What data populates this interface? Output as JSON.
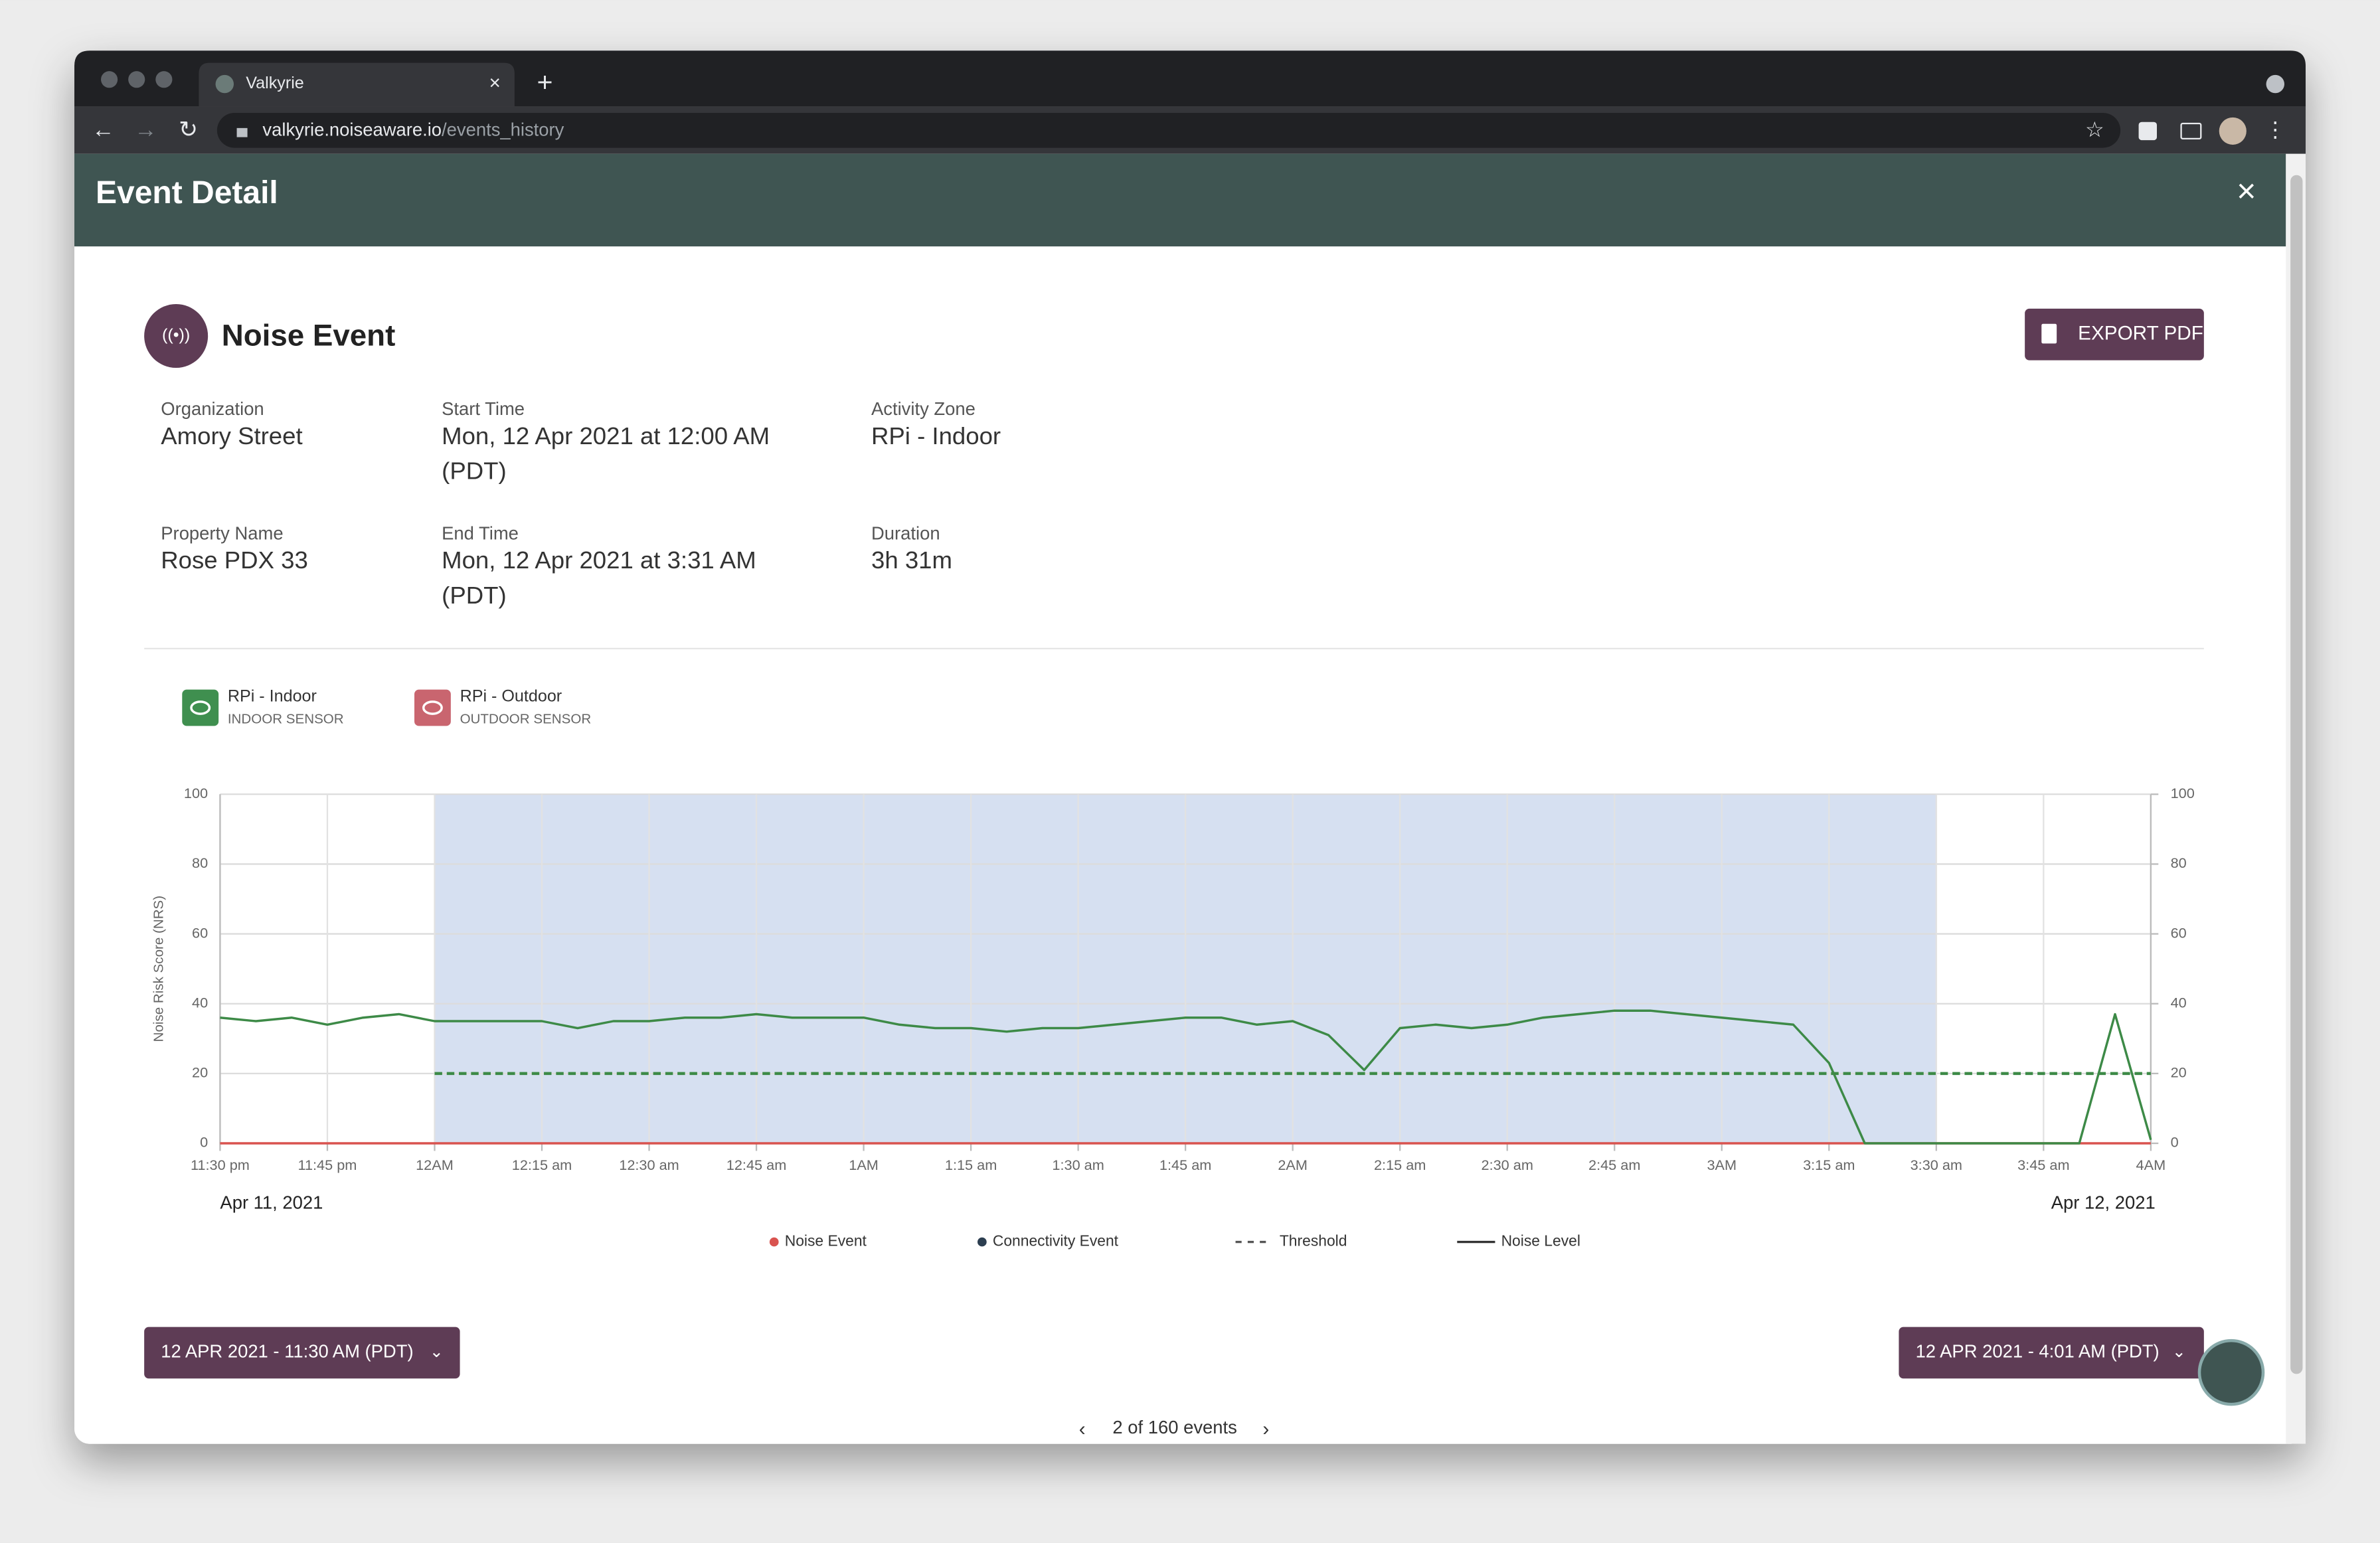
{
  "browser": {
    "tab_title": "Valkyrie",
    "url_host": "valkyrie.noiseaware.io",
    "url_path": "/events_history"
  },
  "modal": {
    "title": "Event Detail"
  },
  "event": {
    "title": "Noise Event",
    "export_button": "EXPORT PDF",
    "fields": [
      {
        "label": "Organization",
        "value": [
          "Amory Street"
        ]
      },
      {
        "label": "Start Time",
        "value": [
          "Mon, 12 Apr 2021 at 12:00 AM",
          "(PDT)"
        ]
      },
      {
        "label": "Activity Zone",
        "value": [
          "RPi - Indoor"
        ]
      },
      {
        "label": "Property Name",
        "value": [
          "Rose PDX 33"
        ]
      },
      {
        "label": "End Time",
        "value": [
          "Mon, 12 Apr 2021 at 3:31 AM",
          "(PDT)"
        ]
      },
      {
        "label": "Duration",
        "value": [
          "3h 31m"
        ]
      }
    ],
    "sensors": [
      {
        "name": "RPi - Indoor",
        "kind": "INDOOR SENSOR",
        "color": "#3f8f4f"
      },
      {
        "name": "RPi - Outdoor",
        "kind": "OUTDOOR SENSOR",
        "color": "#c9656f"
      }
    ]
  },
  "chart_data": {
    "type": "line",
    "y_label": "Noise Risk Score (NRS)",
    "x": [
      "23:30",
      "23:35",
      "23:40",
      "23:45",
      "23:50",
      "23:55",
      "00:00",
      "00:05",
      "00:10",
      "00:15",
      "00:20",
      "00:25",
      "00:30",
      "00:35",
      "00:40",
      "00:45",
      "00:50",
      "00:55",
      "01:00",
      "01:05",
      "01:10",
      "01:15",
      "01:20",
      "01:25",
      "01:30",
      "01:35",
      "01:40",
      "01:45",
      "01:50",
      "01:55",
      "02:00",
      "02:05",
      "02:10",
      "02:15",
      "02:20",
      "02:25",
      "02:30",
      "02:35",
      "02:40",
      "02:45",
      "02:50",
      "02:55",
      "03:00",
      "03:05",
      "03:10",
      "03:15",
      "03:20",
      "03:25",
      "03:30",
      "03:35",
      "03:40",
      "03:45",
      "03:50",
      "03:55",
      "04:00"
    ],
    "series": [
      {
        "name": "Noise Event",
        "color": "#d9534f",
        "legend_marker": "dot",
        "values": [
          0,
          0,
          0,
          0,
          0,
          0,
          0,
          0,
          0,
          0,
          0,
          0,
          0,
          0,
          0,
          0,
          0,
          0,
          0,
          0,
          0,
          0,
          0,
          0,
          0,
          0,
          0,
          0,
          0,
          0,
          0,
          0,
          0,
          0,
          0,
          0,
          0,
          0,
          0,
          0,
          0,
          0,
          0,
          0,
          0,
          0,
          0,
          0,
          0,
          0,
          0,
          0,
          0,
          0,
          0
        ]
      },
      {
        "name": "Connectivity Event",
        "color": "#2c3e50",
        "legend_marker": "dot",
        "values": [
          null,
          null,
          null,
          null,
          null,
          null,
          null,
          null,
          null,
          null,
          null,
          null,
          null,
          null,
          null,
          null,
          null,
          null,
          null,
          null,
          null,
          null,
          null,
          null,
          null,
          null,
          null,
          null,
          null,
          null,
          null,
          null,
          null,
          null,
          null,
          null,
          null,
          null,
          null,
          null,
          null,
          null,
          null,
          null,
          null,
          null,
          null,
          null,
          null,
          null,
          null,
          null,
          null,
          null,
          null
        ]
      },
      {
        "name": "Threshold",
        "color": "#3d8a47",
        "legend_marker": "dash",
        "dashed": true,
        "values": [
          null,
          null,
          null,
          null,
          null,
          null,
          20,
          20,
          20,
          20,
          20,
          20,
          20,
          20,
          20,
          20,
          20,
          20,
          20,
          20,
          20,
          20,
          20,
          20,
          20,
          20,
          20,
          20,
          20,
          20,
          20,
          20,
          20,
          20,
          20,
          20,
          20,
          20,
          20,
          20,
          20,
          20,
          20,
          20,
          20,
          20,
          20,
          20,
          20,
          20,
          20,
          20,
          20,
          20,
          20
        ]
      },
      {
        "name": "Noise Level",
        "color": "#3d8a47",
        "legend_marker": "line",
        "values": [
          36,
          35,
          36,
          34,
          36,
          37,
          35,
          35,
          35,
          35,
          33,
          35,
          35,
          36,
          36,
          37,
          36,
          36,
          36,
          34,
          33,
          33,
          32,
          33,
          33,
          34,
          35,
          36,
          36,
          34,
          35,
          31,
          21,
          33,
          34,
          33,
          34,
          36,
          37,
          38,
          38,
          37,
          36,
          35,
          34,
          23,
          0,
          0,
          0,
          0,
          0,
          0,
          0,
          37,
          1
        ]
      }
    ],
    "highlight": [
      "00:00",
      "03:30"
    ],
    "xlim": [
      "23:30",
      "04:00"
    ],
    "xticks": [
      {
        "value": "23:30",
        "label": "11:30 pm"
      },
      {
        "value": "23:45",
        "label": "11:45 pm"
      },
      {
        "value": "00:00",
        "label": "12AM"
      },
      {
        "value": "00:15",
        "label": "12:15 am"
      },
      {
        "value": "00:30",
        "label": "12:30 am"
      },
      {
        "value": "00:45",
        "label": "12:45 am"
      },
      {
        "value": "01:00",
        "label": "1AM"
      },
      {
        "value": "01:15",
        "label": "1:15 am"
      },
      {
        "value": "01:30",
        "label": "1:30 am"
      },
      {
        "value": "01:45",
        "label": "1:45 am"
      },
      {
        "value": "02:00",
        "label": "2AM"
      },
      {
        "value": "02:15",
        "label": "2:15 am"
      },
      {
        "value": "02:30",
        "label": "2:30 am"
      },
      {
        "value": "02:45",
        "label": "2:45 am"
      },
      {
        "value": "03:00",
        "label": "3AM"
      },
      {
        "value": "03:15",
        "label": "3:15 am"
      },
      {
        "value": "03:30",
        "label": "3:30 am"
      },
      {
        "value": "03:45",
        "label": "3:45 am"
      },
      {
        "value": "04:00",
        "label": "4AM"
      }
    ],
    "ylim": [
      0,
      100
    ],
    "yticks": [
      0,
      20,
      40,
      60,
      80,
      100
    ],
    "y2lim": [
      0,
      100
    ],
    "y2ticks": [
      0,
      20,
      40,
      60,
      80,
      100
    ],
    "grid": true,
    "date_start": "Apr 11, 2021",
    "date_end": "Apr 12, 2021"
  },
  "footer": {
    "start_picker": "12 APR 2021 - 11:30 AM (PDT)",
    "end_picker": "12 APR 2021 - 4:01 AM (PDT)",
    "pager": "2 of 160 events"
  }
}
